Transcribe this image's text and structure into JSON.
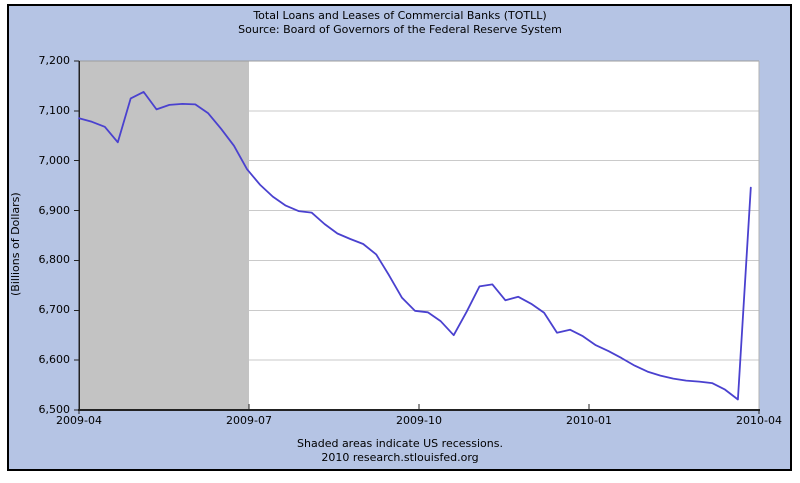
{
  "header": {
    "title": "Total Loans and Leases of Commercial Banks (TOTLL)",
    "subtitle": "Source: Board of Governors of the Federal Reserve System"
  },
  "footer": {
    "recession_note": "Shaded areas indicate US recessions.",
    "attribution": "2010 research.stlouisfed.org"
  },
  "colors": {
    "panel_background": "#b5c4e4",
    "panel_border": "#000000",
    "plot_background": "#ffffff",
    "recession_band": "#c3c3c3",
    "gridline": "#cacaca",
    "axis_dark": "#222222",
    "axis_light_top": "#9c9c9c",
    "axis_light_right": "#b3b3b3",
    "series_line": "#4a41cf",
    "text": "#000000"
  },
  "chart_data": {
    "type": "line",
    "title": "Total Loans and Leases of Commercial Banks (TOTLL)",
    "subtitle": "Source: Board of Governors of the Federal Reserve System",
    "xlabel": "",
    "ylabel": "(Billions of Dollars)",
    "ylim": [
      6500,
      7200
    ],
    "y_tick_step": 100,
    "y_tick_labels": [
      "7,200",
      "7,100",
      "7,000",
      "6,900",
      "6,800",
      "6,700",
      "6,600",
      "6,500"
    ],
    "x_tick_labels": [
      "2009-04",
      "2009-07",
      "2009-10",
      "2010-01",
      "2010-04"
    ],
    "grid": "horizontal",
    "legend": "none",
    "recession_band": {
      "shaded": true,
      "start_tick": "2009-04",
      "end_tick": "2009-07"
    },
    "series": [
      {
        "name": "TOTLL",
        "frequency": "weekly",
        "color": "#4a41cf",
        "x": [
          "2009-04-01",
          "2009-04-08",
          "2009-04-15",
          "2009-04-22",
          "2009-04-29",
          "2009-05-06",
          "2009-05-13",
          "2009-05-20",
          "2009-05-27",
          "2009-06-03",
          "2009-06-10",
          "2009-06-17",
          "2009-06-24",
          "2009-07-01",
          "2009-07-08",
          "2009-07-15",
          "2009-07-22",
          "2009-07-29",
          "2009-08-05",
          "2009-08-12",
          "2009-08-19",
          "2009-08-26",
          "2009-09-02",
          "2009-09-09",
          "2009-09-16",
          "2009-09-23",
          "2009-09-30",
          "2009-10-07",
          "2009-10-14",
          "2009-10-21",
          "2009-10-28",
          "2009-11-04",
          "2009-11-11",
          "2009-11-18",
          "2009-11-25",
          "2009-12-02",
          "2009-12-09",
          "2009-12-16",
          "2009-12-23",
          "2009-12-30",
          "2010-01-06",
          "2010-01-13",
          "2010-01-20",
          "2010-01-27",
          "2010-02-03",
          "2010-02-10",
          "2010-02-17",
          "2010-02-24",
          "2010-03-03",
          "2010-03-10",
          "2010-03-17",
          "2010-03-24",
          "2010-03-31"
        ],
        "values": [
          7085,
          7078,
          7068,
          7037,
          7125,
          7138,
          7103,
          7112,
          7114,
          7113,
          7095,
          7064,
          7030,
          6983,
          6952,
          6928,
          6910,
          6899,
          6896,
          6873,
          6854,
          6843,
          6833,
          6812,
          6770,
          6725,
          6699,
          6696,
          6678,
          6650,
          6697,
          6748,
          6752,
          6720,
          6727,
          6713,
          6695,
          6655,
          6661,
          6648,
          6630,
          6618,
          6604,
          6589,
          6577,
          6569,
          6563,
          6559,
          6557,
          6554,
          6541,
          6521,
          6946
        ]
      }
    ]
  }
}
